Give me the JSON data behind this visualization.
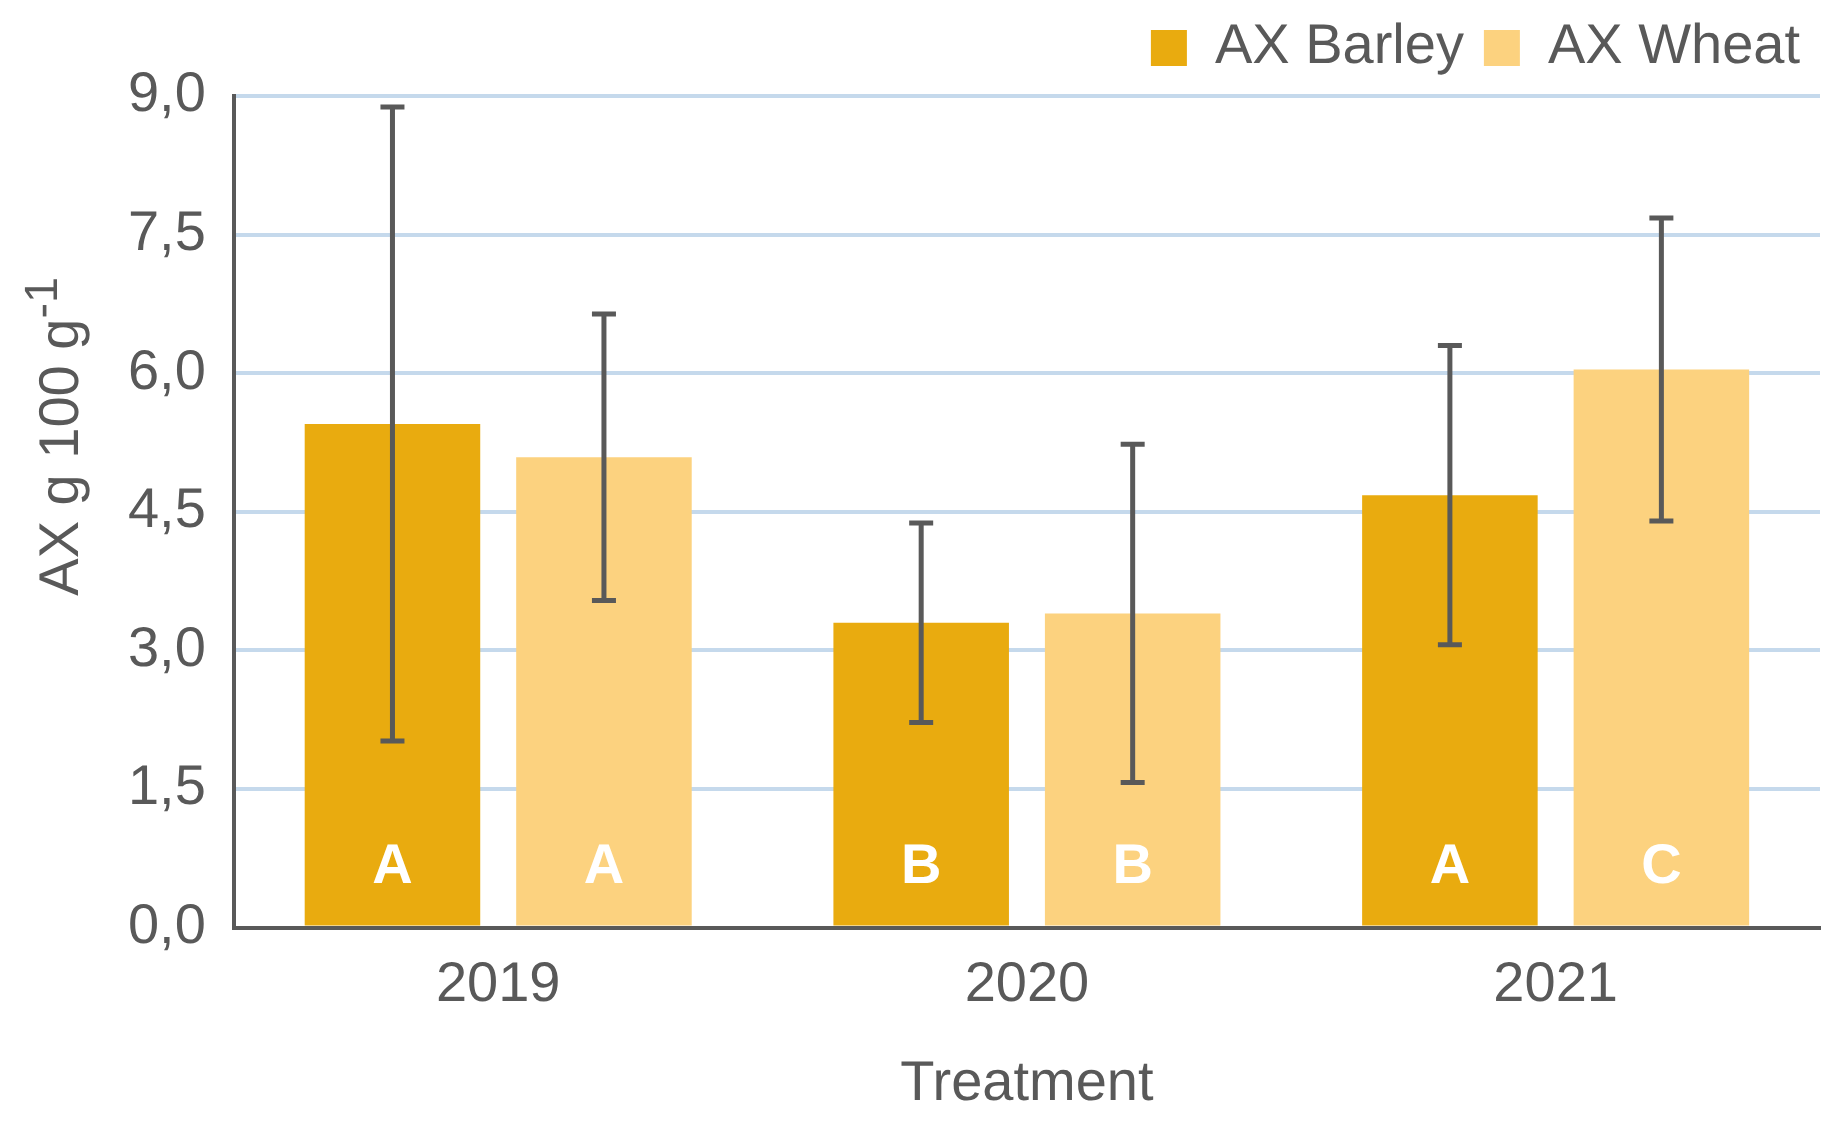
{
  "chart_data": {
    "type": "bar",
    "xlabel": "Treatment",
    "ylabel": "AX g 100 g$^{-1}$",
    "categories": [
      "2019",
      "2020",
      "2021"
    ],
    "series": [
      {
        "name": "AX Barley",
        "color": "#e9ab0f",
        "values": [
          5.45,
          3.3,
          4.68
        ],
        "errors": [
          3.43,
          1.08,
          1.62
        ],
        "value_labels": [
          "A",
          "B",
          "A"
        ]
      },
      {
        "name": "AX Wheat",
        "color": "#fcd27f",
        "values": [
          5.09,
          3.4,
          6.04
        ],
        "errors": [
          1.55,
          1.83,
          1.64
        ],
        "value_labels": [
          "A",
          "B",
          "C"
        ]
      }
    ],
    "ylim": [
      0,
      9
    ],
    "yticks": [
      {
        "value": 0,
        "label": "0,0"
      },
      {
        "value": 1.5,
        "label": "1,5"
      },
      {
        "value": 3,
        "label": "3,0"
      },
      {
        "value": 4.5,
        "label": "4,5"
      },
      {
        "value": 6,
        "label": "6,0"
      },
      {
        "value": 7.5,
        "label": "7,5"
      },
      {
        "value": 9,
        "label": "9,0"
      }
    ],
    "grid": "y",
    "legend": "top right"
  }
}
